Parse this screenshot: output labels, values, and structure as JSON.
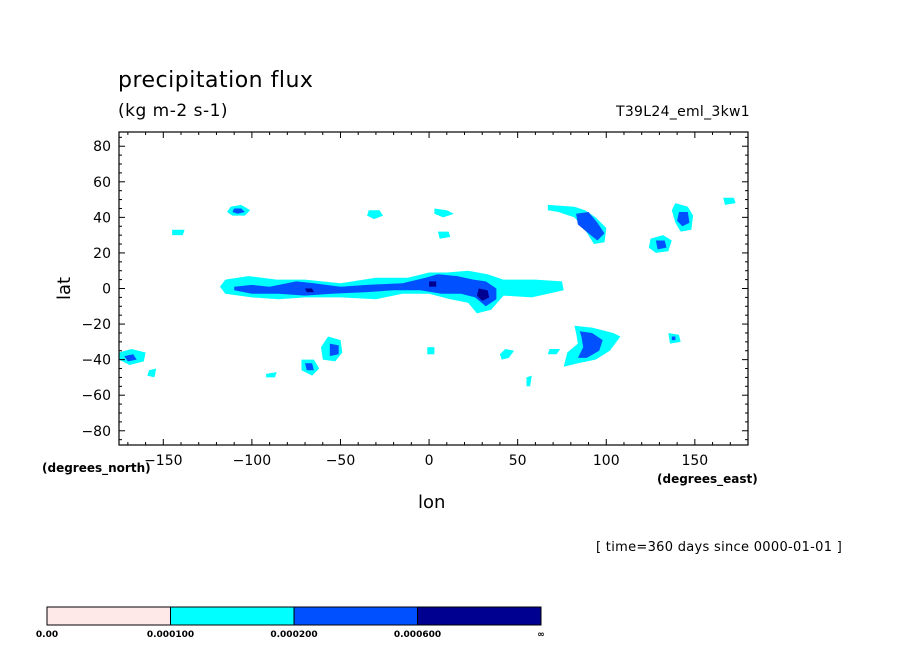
{
  "header": {
    "title": "precipitation flux",
    "units": "(kg m-2 s-1)",
    "run_name": "T39L24_eml_3kw1"
  },
  "footer": {
    "time_note": "[ time=360 days since 0000-01-01 ]"
  },
  "chart_data": {
    "type": "contour",
    "xlabel": "lon",
    "ylabel": "lat",
    "x_units": "(degrees_east)",
    "y_units": "(degrees_north)",
    "xlim": [
      -175,
      180
    ],
    "ylim": [
      -88,
      88
    ],
    "x_ticks": [
      -150,
      -100,
      -50,
      0,
      50,
      100,
      150
    ],
    "y_ticks": [
      80,
      60,
      40,
      20,
      0,
      -20,
      -40,
      -60,
      -80
    ],
    "x_tick_labels": [
      "−150",
      "−100",
      "−50",
      "0",
      "50",
      "100",
      "150"
    ],
    "y_tick_labels": [
      "80",
      "60",
      "40",
      "20",
      "0",
      "−20",
      "−40",
      "−60",
      "−80"
    ],
    "levels": [
      0.0,
      0.0001,
      0.0002,
      0.0006
    ],
    "colorbar": {
      "colors": [
        "#ffe8e8",
        "#00ffff",
        "#0050ff",
        "#000090"
      ],
      "labels": [
        "0.00",
        "0.000100",
        "0.000200",
        "0.000600",
        "∞"
      ]
    },
    "regions": [
      {
        "level": 1,
        "points": [
          [
            -112,
            46
          ],
          [
            -106,
            47
          ],
          [
            -101,
            44
          ],
          [
            -104,
            41
          ],
          [
            -111,
            41
          ],
          [
            -114,
            43
          ]
        ]
      },
      {
        "level": 2,
        "points": [
          [
            -110,
            45
          ],
          [
            -106,
            45
          ],
          [
            -104,
            43
          ],
          [
            -108,
            42
          ],
          [
            -111,
            43
          ]
        ]
      },
      {
        "level": 1,
        "points": [
          [
            -145,
            33
          ],
          [
            -138,
            33
          ],
          [
            -139,
            30
          ],
          [
            -145,
            30
          ]
        ]
      },
      {
        "level": 1,
        "points": [
          [
            -34,
            44
          ],
          [
            -28,
            44
          ],
          [
            -26,
            41
          ],
          [
            -31,
            39
          ],
          [
            -35,
            41
          ]
        ]
      },
      {
        "level": 1,
        "points": [
          [
            3,
            45
          ],
          [
            10,
            44
          ],
          [
            14,
            42
          ],
          [
            8,
            40
          ],
          [
            3,
            42
          ]
        ]
      },
      {
        "level": 1,
        "points": [
          [
            5,
            32
          ],
          [
            11,
            32
          ],
          [
            12,
            29
          ],
          [
            6,
            28
          ]
        ]
      },
      {
        "level": 1,
        "points": [
          [
            67,
            47
          ],
          [
            82,
            46
          ],
          [
            88,
            44
          ],
          [
            94,
            40
          ],
          [
            100,
            34
          ],
          [
            99,
            26
          ],
          [
            93,
            25
          ],
          [
            88,
            33
          ],
          [
            82,
            40
          ],
          [
            73,
            43
          ],
          [
            67,
            44
          ]
        ]
      },
      {
        "level": 2,
        "points": [
          [
            83,
            42
          ],
          [
            90,
            43
          ],
          [
            95,
            37
          ],
          [
            99,
            31
          ],
          [
            95,
            27
          ],
          [
            90,
            31
          ],
          [
            84,
            36
          ]
        ]
      },
      {
        "level": 1,
        "points": [
          [
            139,
            48
          ],
          [
            146,
            46
          ],
          [
            149,
            41
          ],
          [
            148,
            33
          ],
          [
            142,
            32
          ],
          [
            139,
            37
          ],
          [
            137,
            44
          ]
        ]
      },
      {
        "level": 2,
        "points": [
          [
            141,
            43
          ],
          [
            146,
            43
          ],
          [
            147,
            37
          ],
          [
            143,
            35
          ],
          [
            140,
            38
          ]
        ]
      },
      {
        "level": 1,
        "points": [
          [
            125,
            28
          ],
          [
            132,
            30
          ],
          [
            137,
            27
          ],
          [
            135,
            21
          ],
          [
            128,
            20
          ],
          [
            124,
            23
          ]
        ]
      },
      {
        "level": 2,
        "points": [
          [
            128,
            27
          ],
          [
            133,
            27
          ],
          [
            134,
            23
          ],
          [
            129,
            22
          ]
        ]
      },
      {
        "level": 1,
        "points": [
          [
            166,
            51
          ],
          [
            172,
            51
          ],
          [
            173,
            48
          ],
          [
            167,
            47
          ]
        ]
      },
      {
        "level": 1,
        "points": [
          [
            -115,
            5
          ],
          [
            -102,
            7
          ],
          [
            -86,
            5
          ],
          [
            -70,
            5
          ],
          [
            -50,
            3
          ],
          [
            -30,
            6
          ],
          [
            -12,
            6
          ],
          [
            0,
            9
          ],
          [
            10,
            9
          ],
          [
            22,
            10
          ],
          [
            33,
            8
          ],
          [
            42,
            5
          ],
          [
            60,
            5
          ],
          [
            75,
            4
          ],
          [
            76,
            -1
          ],
          [
            58,
            -5
          ],
          [
            42,
            -4
          ],
          [
            35,
            -12
          ],
          [
            27,
            -14
          ],
          [
            22,
            -8
          ],
          [
            12,
            -6
          ],
          [
            0,
            -3
          ],
          [
            -15,
            -3
          ],
          [
            -30,
            -6
          ],
          [
            -50,
            -5
          ],
          [
            -70,
            -5
          ],
          [
            -85,
            -6
          ],
          [
            -100,
            -5
          ],
          [
            -115,
            -3
          ],
          [
            -118,
            1
          ]
        ]
      },
      {
        "level": 2,
        "points": [
          [
            -110,
            1
          ],
          [
            -100,
            2
          ],
          [
            -90,
            1
          ],
          [
            -75,
            4
          ],
          [
            -65,
            3
          ],
          [
            -50,
            1
          ],
          [
            -35,
            2
          ],
          [
            -15,
            3
          ],
          [
            -2,
            6
          ],
          [
            5,
            8
          ],
          [
            16,
            7
          ],
          [
            25,
            5
          ],
          [
            32,
            4
          ],
          [
            38,
            0
          ],
          [
            38,
            -6
          ],
          [
            32,
            -10
          ],
          [
            26,
            -5
          ],
          [
            18,
            -3
          ],
          [
            7,
            -3
          ],
          [
            -5,
            -1
          ],
          [
            -20,
            -1
          ],
          [
            -35,
            -2
          ],
          [
            -55,
            -3
          ],
          [
            -70,
            -4
          ],
          [
            -85,
            -3
          ],
          [
            -100,
            -3
          ],
          [
            -110,
            -1
          ]
        ]
      },
      {
        "level": 3,
        "points": [
          [
            28,
            0
          ],
          [
            33,
            -1
          ],
          [
            34,
            -5
          ],
          [
            30,
            -7
          ],
          [
            27,
            -4
          ]
        ]
      },
      {
        "level": 3,
        "points": [
          [
            -70,
            0
          ],
          [
            -66,
            0
          ],
          [
            -65,
            -2
          ],
          [
            -69,
            -2
          ]
        ]
      },
      {
        "level": 3,
        "points": [
          [
            0,
            4
          ],
          [
            4,
            4
          ],
          [
            4,
            1
          ],
          [
            0,
            1
          ]
        ]
      },
      {
        "level": 1,
        "points": [
          [
            -175,
            -36
          ],
          [
            -168,
            -34
          ],
          [
            -160,
            -36
          ],
          [
            -161,
            -41
          ],
          [
            -169,
            -43
          ],
          [
            -175,
            -40
          ]
        ]
      },
      {
        "level": 2,
        "points": [
          [
            -172,
            -38
          ],
          [
            -167,
            -37
          ],
          [
            -165,
            -40
          ],
          [
            -170,
            -41
          ]
        ]
      },
      {
        "level": 1,
        "points": [
          [
            -158,
            -46
          ],
          [
            -154,
            -45
          ],
          [
            -155,
            -50
          ],
          [
            -159,
            -49
          ]
        ]
      },
      {
        "level": 1,
        "points": [
          [
            -57,
            -27
          ],
          [
            -50,
            -29
          ],
          [
            -49,
            -36
          ],
          [
            -53,
            -41
          ],
          [
            -60,
            -40
          ],
          [
            -61,
            -33
          ]
        ]
      },
      {
        "level": 2,
        "points": [
          [
            -56,
            -31
          ],
          [
            -51,
            -32
          ],
          [
            -51,
            -37
          ],
          [
            -56,
            -38
          ]
        ]
      },
      {
        "level": 1,
        "points": [
          [
            -72,
            -40
          ],
          [
            -65,
            -40
          ],
          [
            -62,
            -45
          ],
          [
            -66,
            -49
          ],
          [
            -72,
            -46
          ]
        ]
      },
      {
        "level": 2,
        "points": [
          [
            -70,
            -42
          ],
          [
            -66,
            -42
          ],
          [
            -65,
            -46
          ],
          [
            -69,
            -46
          ]
        ]
      },
      {
        "level": 1,
        "points": [
          [
            -1,
            -33
          ],
          [
            3,
            -33
          ],
          [
            3,
            -37
          ],
          [
            -1,
            -37
          ]
        ]
      },
      {
        "level": 1,
        "points": [
          [
            -92,
            -48
          ],
          [
            -86,
            -47
          ],
          [
            -87,
            -50
          ],
          [
            -92,
            -50
          ]
        ]
      },
      {
        "level": 1,
        "points": [
          [
            82,
            -21
          ],
          [
            92,
            -22
          ],
          [
            104,
            -25
          ],
          [
            108,
            -27
          ],
          [
            102,
            -35
          ],
          [
            94,
            -40
          ],
          [
            84,
            -42
          ],
          [
            76,
            -44
          ],
          [
            78,
            -36
          ],
          [
            84,
            -31
          ],
          [
            83,
            -25
          ]
        ]
      },
      {
        "level": 2,
        "points": [
          [
            85,
            -24
          ],
          [
            92,
            -25
          ],
          [
            98,
            -29
          ],
          [
            96,
            -35
          ],
          [
            89,
            -39
          ],
          [
            84,
            -39
          ],
          [
            87,
            -33
          ],
          [
            86,
            -27
          ]
        ]
      },
      {
        "level": 1,
        "points": [
          [
            135,
            -25
          ],
          [
            141,
            -26
          ],
          [
            142,
            -30
          ],
          [
            136,
            -31
          ]
        ]
      },
      {
        "level": 2,
        "points": [
          [
            137,
            -27
          ],
          [
            139,
            -27
          ],
          [
            139,
            -29
          ],
          [
            137,
            -29
          ]
        ]
      },
      {
        "level": 1,
        "points": [
          [
            43,
            -34
          ],
          [
            48,
            -35
          ],
          [
            45,
            -39
          ],
          [
            41,
            -40
          ],
          [
            40,
            -37
          ]
        ]
      },
      {
        "level": 1,
        "points": [
          [
            55,
            -50
          ],
          [
            58,
            -49
          ],
          [
            57,
            -55
          ],
          [
            55,
            -55
          ]
        ]
      },
      {
        "level": 1,
        "points": [
          [
            68,
            -34
          ],
          [
            74,
            -34
          ],
          [
            72,
            -37
          ],
          [
            67,
            -37
          ]
        ]
      }
    ]
  }
}
